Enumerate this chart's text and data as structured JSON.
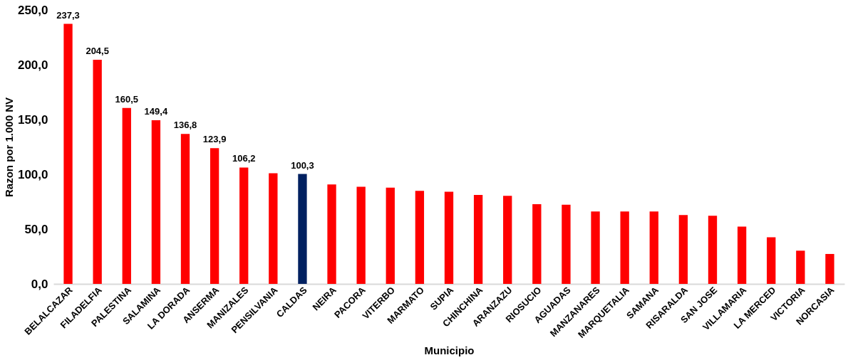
{
  "chart_data": {
    "type": "bar",
    "xlabel": "Municipio",
    "ylabel": "Razon por 1.000 NV",
    "categories": [
      "BELALCAZAR",
      "FILADELFIA",
      "PALESTINA",
      "SALAMINA",
      "LA DORADA",
      "ANSERMA",
      "MANIZALES",
      "PENSILVANIA",
      "CALDAS",
      "NEIRA",
      "PACORA",
      "VITERBO",
      "MARMATO",
      "SUPIA",
      "CHINCHINA",
      "ARANZAZU",
      "RIOSUCIO",
      "AGUADAS",
      "MANZANARES",
      "MARQUETALIA",
      "SAMANA",
      "RISARALDA",
      "SAN JOSE",
      "VILLAMARIA",
      "LA MERCED",
      "VICTORIA",
      "NORCASIA"
    ],
    "values": [
      237.3,
      204.5,
      160.5,
      149.4,
      136.8,
      123.9,
      106.2,
      101,
      100.3,
      90.7,
      88.7,
      87.9,
      84.9,
      84.1,
      81.1,
      80.4,
      72.8,
      72.3,
      66,
      66,
      66,
      62.9,
      62.2,
      52.3,
      42.5,
      30.3,
      27.3
    ],
    "value_labels": [
      "237,3",
      "204,5",
      "160,5",
      "149,4",
      "136,8",
      "123,9",
      "106,2",
      null,
      "100,3",
      null,
      null,
      null,
      null,
      null,
      null,
      null,
      null,
      null,
      null,
      null,
      null,
      null,
      null,
      null,
      null,
      null,
      null
    ],
    "colors": [
      "#ff0000",
      "#ff0000",
      "#ff0000",
      "#ff0000",
      "#ff0000",
      "#ff0000",
      "#ff0000",
      "#ff0000",
      "#002060",
      "#ff0000",
      "#ff0000",
      "#ff0000",
      "#ff0000",
      "#ff0000",
      "#ff0000",
      "#ff0000",
      "#ff0000",
      "#ff0000",
      "#ff0000",
      "#ff0000",
      "#ff0000",
      "#ff0000",
      "#ff0000",
      "#ff0000",
      "#ff0000",
      "#ff0000",
      "#ff0000"
    ],
    "ylim": [
      0,
      250
    ],
    "yticks": [
      {
        "value": 0,
        "label": "0,0"
      },
      {
        "value": 50,
        "label": "50,0"
      },
      {
        "value": 100,
        "label": "100,0"
      },
      {
        "value": 150,
        "label": "150,0"
      },
      {
        "value": 200,
        "label": "200,0"
      },
      {
        "value": 250,
        "label": "250,0"
      }
    ],
    "grid": false
  }
}
